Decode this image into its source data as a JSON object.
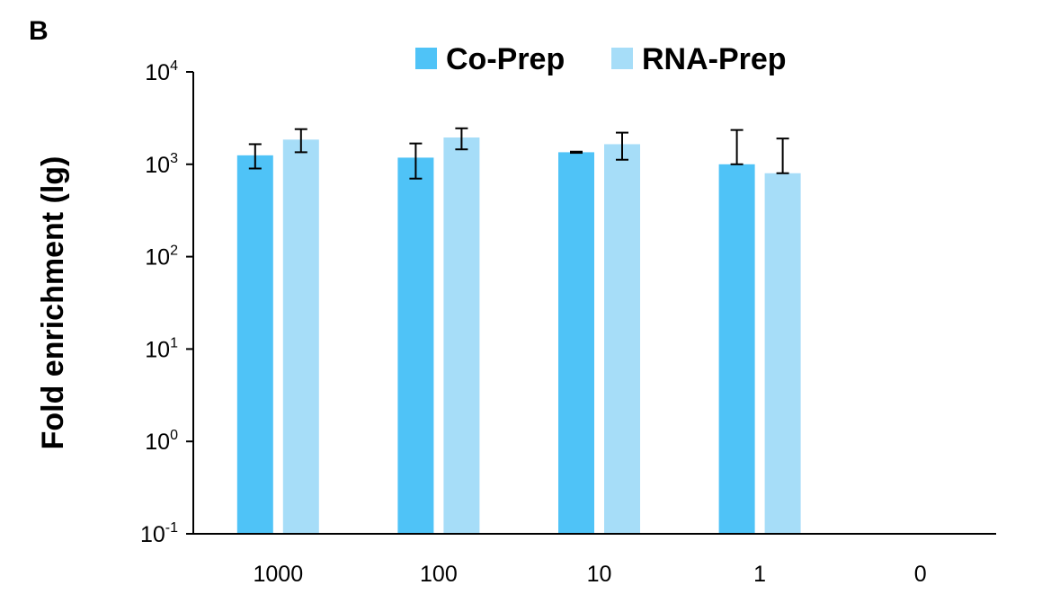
{
  "panel_label": "B",
  "chart_data": {
    "type": "bar",
    "title": "",
    "xlabel": "",
    "ylabel": "Fold enrichment (lg)",
    "yscale": "log10",
    "ylim": [
      0.1,
      10000
    ],
    "y_ticks": [
      {
        "base": "10",
        "exp": "-1"
      },
      {
        "base": "10",
        "exp": "0"
      },
      {
        "base": "10",
        "exp": "1"
      },
      {
        "base": "10",
        "exp": "2"
      },
      {
        "base": "10",
        "exp": "3"
      },
      {
        "base": "10",
        "exp": "4"
      }
    ],
    "categories": [
      "1000",
      "100",
      "10",
      "1",
      "0"
    ],
    "legend_position": "top",
    "series": [
      {
        "name": "Co-Prep",
        "color": "#4fc3f7",
        "values": [
          1250,
          1180,
          1350,
          1000,
          null
        ],
        "err_low": [
          900,
          700,
          1330,
          1000,
          null
        ],
        "err_high": [
          1650,
          1680,
          1370,
          2350,
          null
        ]
      },
      {
        "name": "RNA-Prep",
        "color": "#a6ddf8",
        "values": [
          1850,
          1950,
          1650,
          800,
          null
        ],
        "err_low": [
          1350,
          1450,
          1120,
          800,
          null
        ],
        "err_high": [
          2400,
          2450,
          2200,
          1900,
          null
        ]
      }
    ]
  }
}
